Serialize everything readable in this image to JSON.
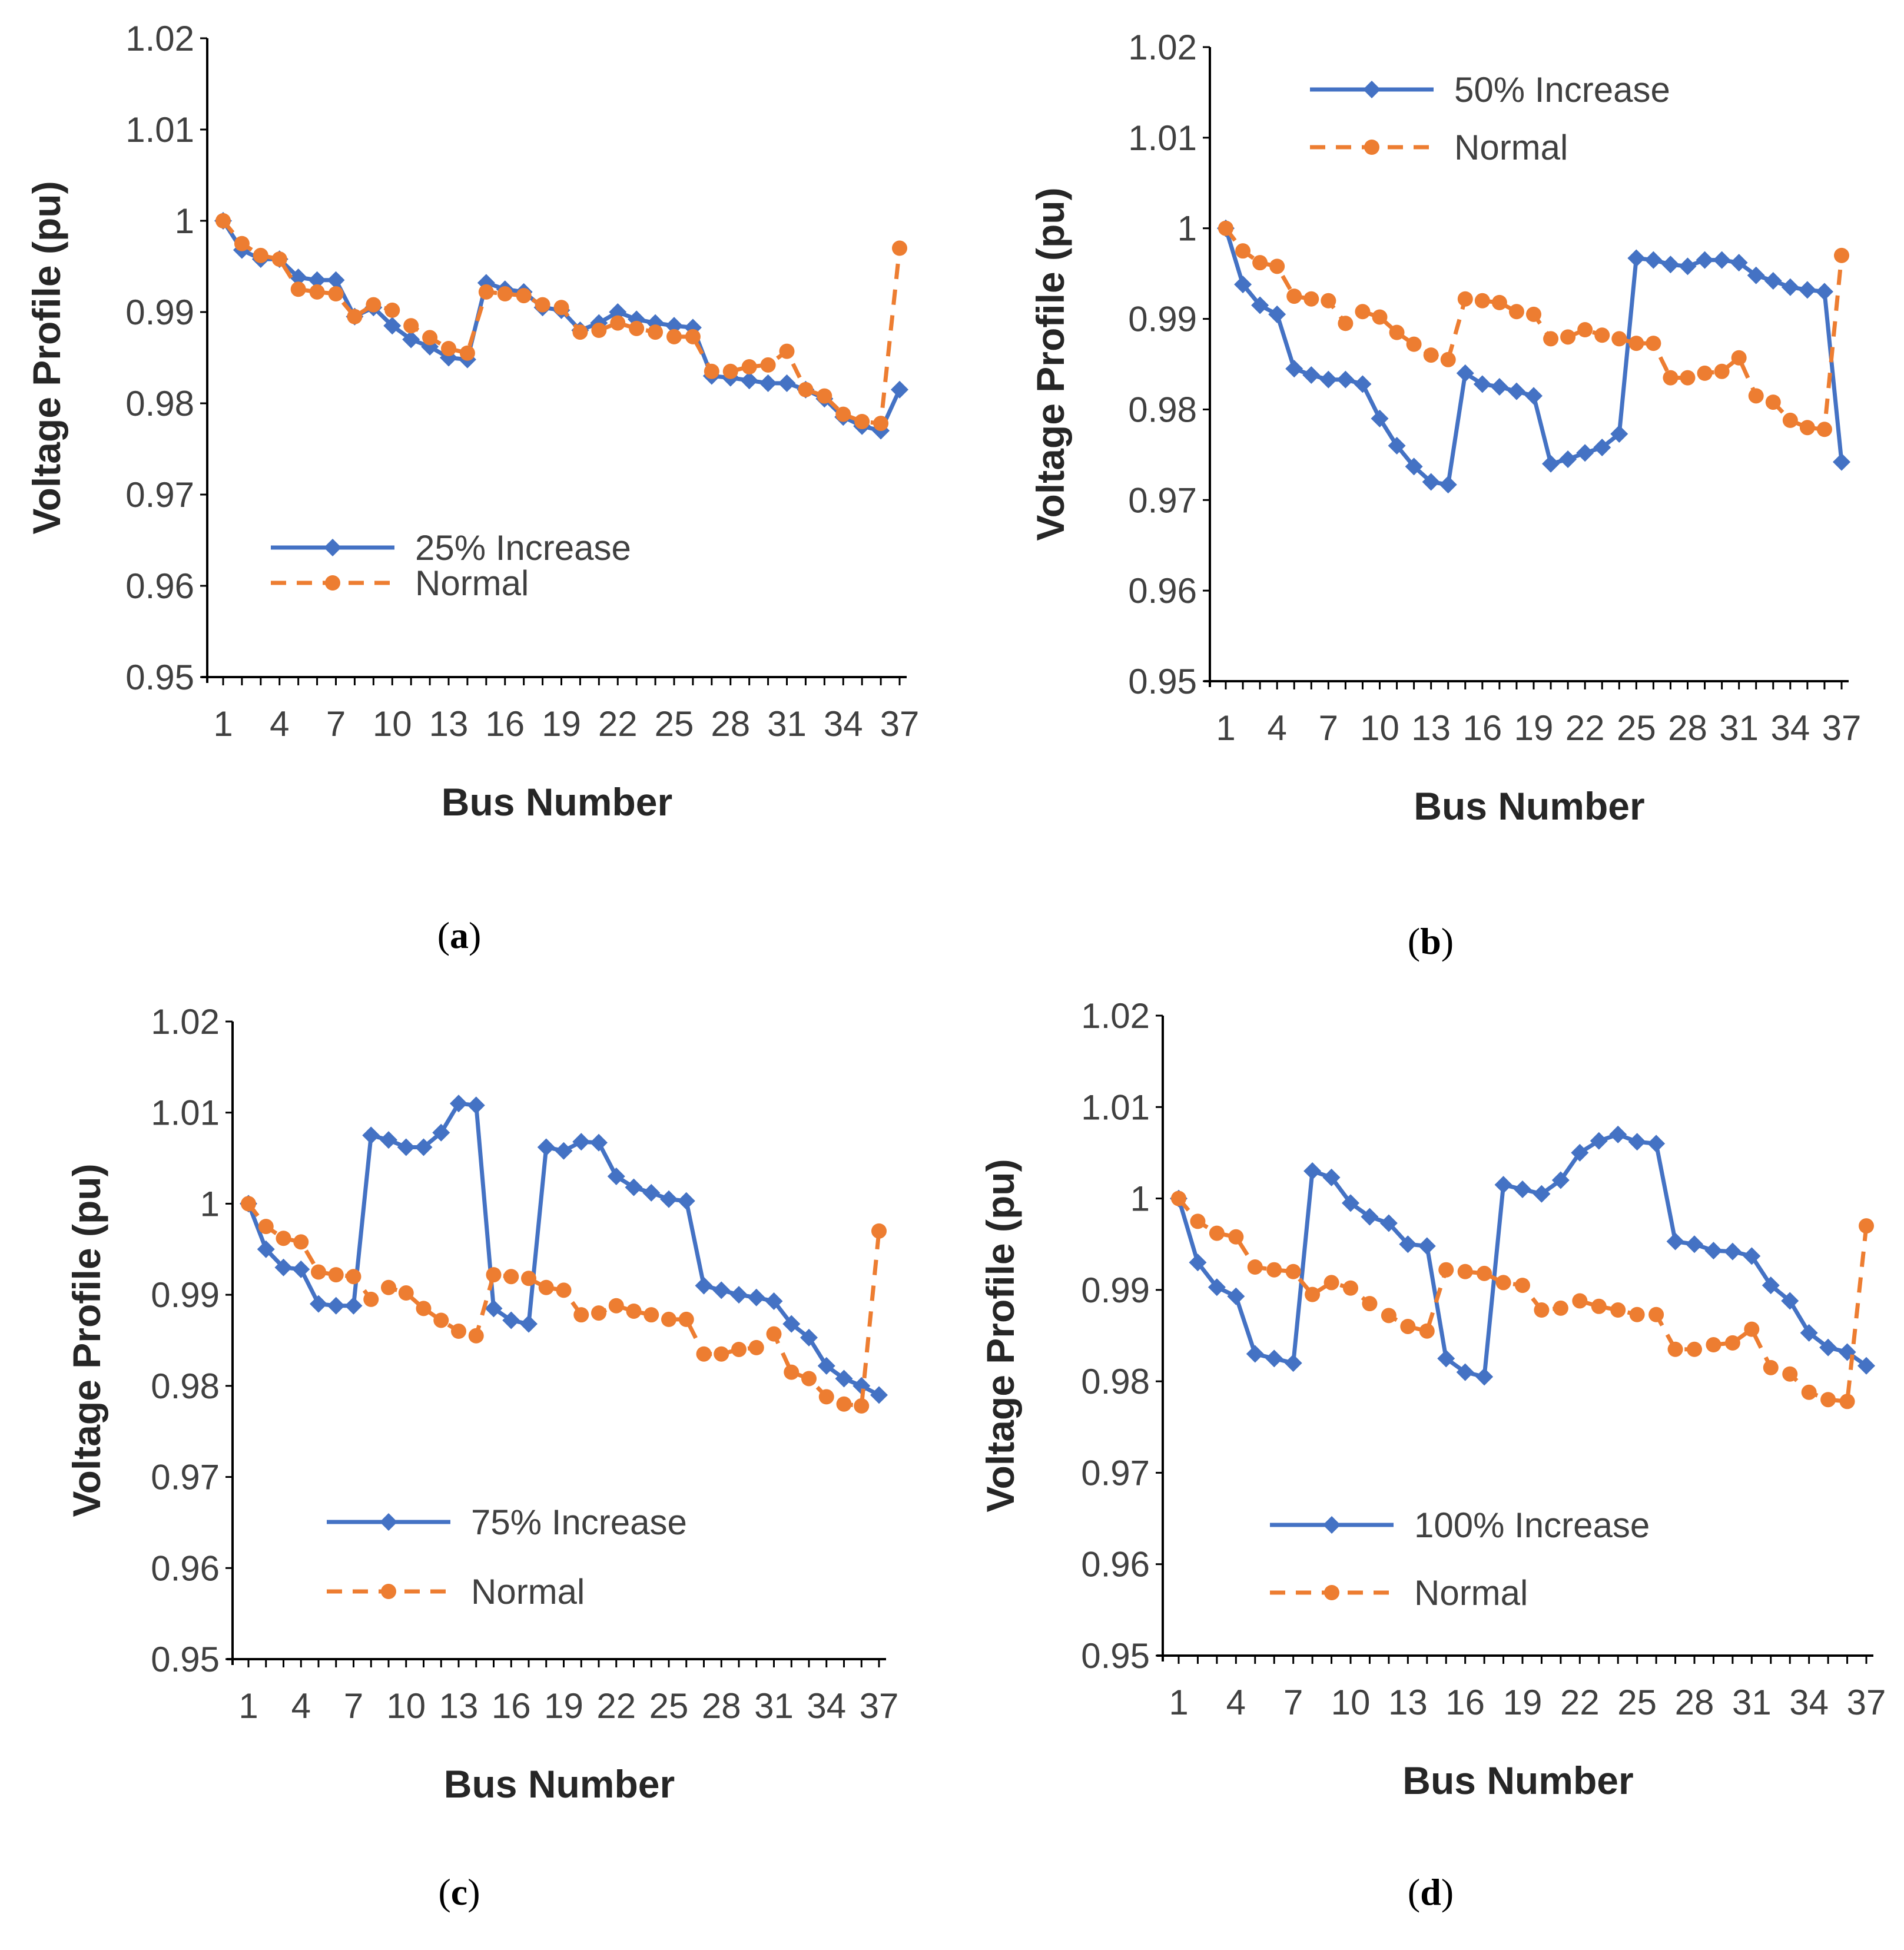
{
  "colors": {
    "increase": "#4472C4",
    "normal": "#ED7D31",
    "axis": "#000000"
  },
  "chart_data": [
    {
      "type": "line",
      "caption": "a",
      "xlabel": "Bus Number",
      "ylabel": "Voltage Profile (pu)",
      "ylim": [
        0.95,
        1.02
      ],
      "ytick_labels": [
        "0.95",
        "0.96",
        "0.97",
        "0.98",
        "0.99",
        "1",
        "1.01",
        "1.02"
      ],
      "xtick_labels": [
        "1",
        "4",
        "7",
        "10",
        "13",
        "16",
        "19",
        "22",
        "25",
        "28",
        "31",
        "34",
        "37"
      ],
      "legend_position": "lower-left",
      "series": [
        {
          "name": "25% Increase",
          "values": [
            1.0,
            0.9968,
            0.9958,
            0.9958,
            0.9938,
            0.9935,
            0.9935,
            0.9895,
            0.9905,
            0.9885,
            0.987,
            0.9862,
            0.985,
            0.9848,
            0.9932,
            0.9925,
            0.9922,
            0.9905,
            0.9902,
            0.988,
            0.9888,
            0.99,
            0.9892,
            0.9888,
            0.9885,
            0.9883,
            0.983,
            0.9828,
            0.9825,
            0.9822,
            0.9822,
            0.9815,
            0.9805,
            0.9785,
            0.9775,
            0.977,
            0.9815
          ]
        },
        {
          "name": "Normal",
          "values": [
            1.0,
            0.9975,
            0.9962,
            0.9958,
            0.9925,
            0.9922,
            0.992,
            0.9895,
            0.9908,
            0.9902,
            0.9885,
            0.9872,
            0.986,
            0.9855,
            0.9922,
            0.992,
            0.9918,
            0.9908,
            0.9905,
            0.9878,
            0.988,
            0.9888,
            0.9882,
            0.9878,
            0.9873,
            0.9873,
            0.9835,
            0.9835,
            0.984,
            0.9842,
            0.9857,
            0.9815,
            0.9808,
            0.9788,
            0.978,
            0.9778,
            0.997
          ]
        }
      ]
    },
    {
      "type": "line",
      "caption": "b",
      "xlabel": "Bus Number",
      "ylabel": "Voltage Profile (pu)",
      "ylim": [
        0.95,
        1.02
      ],
      "ytick_labels": [
        "0.95",
        "0.96",
        "0.97",
        "0.98",
        "0.99",
        "1",
        "1.01",
        "1.02"
      ],
      "xtick_labels": [
        "1",
        "4",
        "7",
        "10",
        "13",
        "16",
        "19",
        "22",
        "25",
        "28",
        "31",
        "34",
        "37"
      ],
      "legend_position": "top-left",
      "series": [
        {
          "name": "50% Increase",
          "values": [
            1.0,
            0.9938,
            0.9915,
            0.9905,
            0.9845,
            0.9838,
            0.9833,
            0.9833,
            0.9828,
            0.979,
            0.976,
            0.9737,
            0.972,
            0.9717,
            0.984,
            0.9828,
            0.9825,
            0.982,
            0.9815,
            0.974,
            0.9745,
            0.9752,
            0.9758,
            0.9773,
            0.9967,
            0.9965,
            0.996,
            0.9958,
            0.9965,
            0.9965,
            0.9962,
            0.9948,
            0.9942,
            0.9935,
            0.9932,
            0.993,
            0.9742
          ]
        },
        {
          "name": "Normal",
          "values": [
            1.0,
            0.9975,
            0.9962,
            0.9958,
            0.9925,
            0.9922,
            0.992,
            0.9895,
            0.9908,
            0.9902,
            0.9885,
            0.9872,
            0.986,
            0.9855,
            0.9922,
            0.992,
            0.9918,
            0.9908,
            0.9905,
            0.9878,
            0.988,
            0.9888,
            0.9882,
            0.9878,
            0.9873,
            0.9873,
            0.9835,
            0.9835,
            0.984,
            0.9842,
            0.9857,
            0.9815,
            0.9808,
            0.9788,
            0.978,
            0.9778,
            0.997
          ]
        }
      ]
    },
    {
      "type": "line",
      "caption": "c",
      "xlabel": "Bus Number",
      "ylabel": "Voltage Profile (pu)",
      "ylim": [
        0.95,
        1.02
      ],
      "ytick_labels": [
        "0.95",
        "0.96",
        "0.97",
        "0.98",
        "0.99",
        "1",
        "1.01",
        "1.02"
      ],
      "xtick_labels": [
        "1",
        "4",
        "7",
        "10",
        "13",
        "16",
        "19",
        "22",
        "25",
        "28",
        "31",
        "34",
        "37"
      ],
      "legend_position": "lower-center",
      "series": [
        {
          "name": "75% Increase",
          "values": [
            1.0,
            0.995,
            0.993,
            0.9928,
            0.989,
            0.9888,
            0.9888,
            1.0075,
            1.007,
            1.0062,
            1.0062,
            1.0078,
            1.011,
            1.0108,
            0.9885,
            0.9872,
            0.9868,
            1.0062,
            1.0058,
            1.0068,
            1.0067,
            1.003,
            1.0018,
            1.0012,
            1.0005,
            1.0003,
            0.991,
            0.9905,
            0.99,
            0.9897,
            0.9893,
            0.9868,
            0.9853,
            0.9822,
            0.9808,
            0.98,
            0.979
          ]
        },
        {
          "name": "Normal",
          "values": [
            1.0,
            0.9975,
            0.9962,
            0.9958,
            0.9925,
            0.9922,
            0.992,
            0.9895,
            0.9908,
            0.9902,
            0.9885,
            0.9872,
            0.986,
            0.9855,
            0.9922,
            0.992,
            0.9918,
            0.9908,
            0.9905,
            0.9878,
            0.988,
            0.9888,
            0.9882,
            0.9878,
            0.9873,
            0.9873,
            0.9835,
            0.9835,
            0.984,
            0.9842,
            0.9857,
            0.9815,
            0.9808,
            0.9788,
            0.978,
            0.9778,
            0.997
          ]
        }
      ]
    },
    {
      "type": "line",
      "caption": "d",
      "xlabel": "Bus Number",
      "ylabel": "Voltage Profile (pu)",
      "ylim": [
        0.95,
        1.02
      ],
      "ytick_labels": [
        "0.95",
        "0.96",
        "0.97",
        "0.98",
        "0.99",
        "1",
        "1.01",
        "1.02"
      ],
      "xtick_labels": [
        "1",
        "4",
        "7",
        "10",
        "13",
        "16",
        "19",
        "22",
        "25",
        "28",
        "31",
        "34",
        "37"
      ],
      "legend_position": "lower-center",
      "series": [
        {
          "name": "100% Increase",
          "values": [
            1.0,
            0.993,
            0.9903,
            0.9893,
            0.983,
            0.9825,
            0.982,
            1.003,
            1.0023,
            0.9995,
            0.998,
            0.9973,
            0.995,
            0.9948,
            0.9825,
            0.981,
            0.9805,
            1.0015,
            1.001,
            1.0005,
            1.002,
            1.005,
            1.0063,
            1.007,
            1.0062,
            1.006,
            0.9953,
            0.995,
            0.9943,
            0.9942,
            0.9937,
            0.9905,
            0.9888,
            0.9853,
            0.9837,
            0.9832,
            0.9817
          ]
        },
        {
          "name": "Normal",
          "values": [
            1.0,
            0.9975,
            0.9962,
            0.9958,
            0.9925,
            0.9922,
            0.992,
            0.9895,
            0.9908,
            0.9902,
            0.9885,
            0.9872,
            0.986,
            0.9855,
            0.9922,
            0.992,
            0.9918,
            0.9908,
            0.9905,
            0.9878,
            0.988,
            0.9888,
            0.9882,
            0.9878,
            0.9873,
            0.9873,
            0.9835,
            0.9835,
            0.984,
            0.9842,
            0.9857,
            0.9815,
            0.9808,
            0.9788,
            0.978,
            0.9778,
            0.997
          ]
        }
      ]
    }
  ]
}
